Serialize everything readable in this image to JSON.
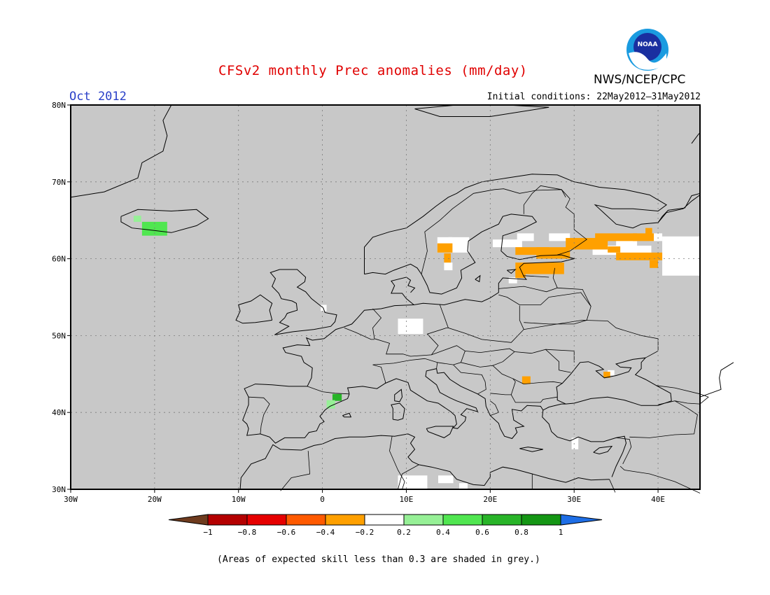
{
  "header": {
    "title": "CFSv2 monthly Prec anomalies (mm/day)",
    "month": "Oct 2012",
    "initial_conditions": "Initial conditions: 22May2012–31May2012",
    "agency": "NWS/NCEP/CPC",
    "logo_text": "NOAA"
  },
  "map": {
    "region": "Europe",
    "lon_range": [
      -30,
      45
    ],
    "lat_range": [
      30,
      80
    ],
    "lat_ticks": [
      "80N",
      "70N",
      "60N",
      "50N",
      "40N",
      "30N"
    ],
    "lon_ticks": [
      "30W",
      "20W",
      "10W",
      "0",
      "10E",
      "20E",
      "30E",
      "40E"
    ],
    "background_color": "#c8c8c8",
    "anomaly_cells": [
      {
        "lon": -21.5,
        "lat": 63.0,
        "w": 3.0,
        "h": 1.8,
        "value": 0.5
      },
      {
        "lon": -22.5,
        "lat": 64.8,
        "w": 0.9,
        "h": 0.8,
        "value": 0.3
      },
      {
        "lon": 1.2,
        "lat": 41.5,
        "w": 1.1,
        "h": 0.9,
        "value": 0.7
      },
      {
        "lon": 0.5,
        "lat": 40.5,
        "w": 1.0,
        "h": 1.1,
        "value": 0.3
      },
      {
        "lon": 13.7,
        "lat": 60.8,
        "w": 1.8,
        "h": 1.2,
        "value": -0.3
      },
      {
        "lon": 14.5,
        "lat": 59.5,
        "w": 0.8,
        "h": 1.2,
        "value": -0.3
      },
      {
        "lon": 23.0,
        "lat": 60.5,
        "w": 4.0,
        "h": 1.0,
        "value": -0.3
      },
      {
        "lon": 25.5,
        "lat": 60.0,
        "w": 4.0,
        "h": 1.5,
        "value": -0.3
      },
      {
        "lon": 29.0,
        "lat": 61.2,
        "w": 5.0,
        "h": 1.5,
        "value": -0.3
      },
      {
        "lon": 32.5,
        "lat": 62.3,
        "w": 5.0,
        "h": 1.0,
        "value": -0.3
      },
      {
        "lon": 37.0,
        "lat": 62.3,
        "w": 2.5,
        "h": 1.0,
        "value": -0.3
      },
      {
        "lon": 38.5,
        "lat": 63.0,
        "w": 0.8,
        "h": 1.0,
        "value": -0.3
      },
      {
        "lon": 34.0,
        "lat": 60.8,
        "w": 1.5,
        "h": 0.8,
        "value": -0.3
      },
      {
        "lon": 35.0,
        "lat": 59.8,
        "w": 5.5,
        "h": 1.0,
        "value": -0.3
      },
      {
        "lon": 39.0,
        "lat": 58.8,
        "w": 1.0,
        "h": 1.0,
        "value": -0.3
      },
      {
        "lon": 23.0,
        "lat": 58.0,
        "w": 5.8,
        "h": 1.5,
        "value": -0.3
      },
      {
        "lon": 23.0,
        "lat": 57.5,
        "w": 1.2,
        "h": 1.0,
        "value": -0.3
      },
      {
        "lon": 23.8,
        "lat": 43.7,
        "w": 1.0,
        "h": 1.0,
        "value": -0.3
      },
      {
        "lon": 33.5,
        "lat": 44.5,
        "w": 0.8,
        "h": 0.8,
        "value": -0.3
      },
      {
        "lon": 13.7,
        "lat": 60.8,
        "w": 1.8,
        "h": 2.0,
        "value": 0.0
      },
      {
        "lon": 15.0,
        "lat": 60.8,
        "w": 2.5,
        "h": 2.0,
        "value": 0.0
      },
      {
        "lon": 14.5,
        "lat": 58.5,
        "w": 1.0,
        "h": 1.0,
        "value": 0.0
      },
      {
        "lon": 20.3,
        "lat": 61.5,
        "w": 3.5,
        "h": 1.0,
        "value": 0.0
      },
      {
        "lon": 23.2,
        "lat": 62.3,
        "w": 2.0,
        "h": 1.0,
        "value": 0.0
      },
      {
        "lon": 27.0,
        "lat": 62.3,
        "w": 2.5,
        "h": 1.0,
        "value": 0.0
      },
      {
        "lon": 32.2,
        "lat": 60.5,
        "w": 7.0,
        "h": 1.2,
        "value": 0.0
      },
      {
        "lon": 35.0,
        "lat": 61.5,
        "w": 2.5,
        "h": 1.0,
        "value": 0.0
      },
      {
        "lon": 40.5,
        "lat": 57.8,
        "w": 4.5,
        "h": 5.1,
        "value": 0.0
      },
      {
        "lon": 39.0,
        "lat": 62.3,
        "w": 1.5,
        "h": 1.0,
        "value": 0.0
      },
      {
        "lon": 22.2,
        "lat": 56.8,
        "w": 1.0,
        "h": 0.8,
        "value": 0.0
      },
      {
        "lon": 9.0,
        "lat": 50.2,
        "w": 3.0,
        "h": 2.0,
        "value": 0.0
      },
      {
        "lon": -0.2,
        "lat": 53.2,
        "w": 0.7,
        "h": 0.8,
        "value": 0.0
      },
      {
        "lon": 34.0,
        "lat": 44.8,
        "w": 0.8,
        "h": 0.7,
        "value": 0.0
      },
      {
        "lon": 29.7,
        "lat": 35.2,
        "w": 0.8,
        "h": 1.5,
        "value": 0.0
      },
      {
        "lon": 9.0,
        "lat": 30.0,
        "w": 3.5,
        "h": 1.8,
        "value": 0.0
      },
      {
        "lon": 13.8,
        "lat": 30.8,
        "w": 1.8,
        "h": 1.0,
        "value": 0.0
      },
      {
        "lon": 16.3,
        "lat": 30.0,
        "w": 1.0,
        "h": 0.8,
        "value": 0.0
      }
    ]
  },
  "legend": {
    "bins": [
      {
        "label": "−1",
        "color": "#6e3b1e"
      },
      {
        "label": "−0.8",
        "color": "#b40000"
      },
      {
        "label": "−0.6",
        "color": "#e60000"
      },
      {
        "label": "−0.4",
        "color": "#ff5a00"
      },
      {
        "label": "−0.2",
        "color": "#ffa000"
      },
      {
        "label": "0.2",
        "color": "#ffffff"
      },
      {
        "label": "0.4",
        "color": "#96f096"
      },
      {
        "label": "0.6",
        "color": "#50e650"
      },
      {
        "label": "0.8",
        "color": "#28b428"
      },
      {
        "label": "1",
        "color": "#149614"
      },
      {
        "label": "",
        "color": "#1e6ee6"
      }
    ],
    "tick_labels": [
      "−1",
      "−0.8",
      "−0.6",
      "−0.4",
      "−0.2",
      "0.2",
      "0.4",
      "0.6",
      "0.8",
      "1"
    ]
  },
  "footnote": "(Areas of expected skill less than 0.3 are shaded in grey.)"
}
